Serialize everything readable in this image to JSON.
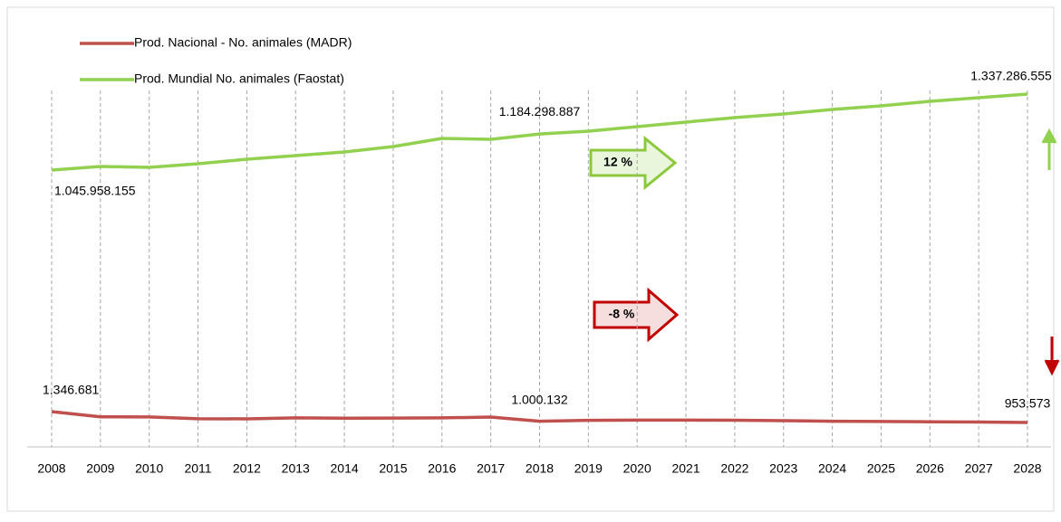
{
  "chart_data": {
    "type": "line",
    "categories": [
      "2008",
      "2009",
      "2010",
      "2011",
      "2012",
      "2013",
      "2014",
      "2015",
      "2016",
      "2017",
      "2018",
      "2019",
      "2020",
      "2021",
      "2022",
      "2023",
      "2024",
      "2025",
      "2026",
      "2027",
      "2028"
    ],
    "series": [
      {
        "name": "Prod. Nacional - No. animales (MADR)",
        "color": "#c0504d",
        "values": [
          1346681,
          1160000,
          1155000,
          1090000,
          1085000,
          1120000,
          1110000,
          1115000,
          1120000,
          1150000,
          1000132,
          1030000,
          1040000,
          1040000,
          1035000,
          1020000,
          1000000,
          990000,
          980000,
          970000,
          953573
        ],
        "value_labels": [
          "1.346.681",
          null,
          null,
          null,
          null,
          null,
          null,
          null,
          null,
          null,
          "1.000.132",
          null,
          null,
          null,
          null,
          null,
          null,
          null,
          null,
          null,
          "953.573"
        ]
      },
      {
        "name": "Prod. Mundial  No. animales (Faostat)",
        "color": "#92d050",
        "values": [
          1045958155,
          1059830000,
          1056360000,
          1070240000,
          1087580000,
          1101450000,
          1115320000,
          1136130000,
          1167350000,
          1163870000,
          1184298887,
          1195090000,
          1212430000,
          1229770000,
          1247110000,
          1260990000,
          1278330000,
          1292200000,
          1309540000,
          1323410000,
          1337286555
        ],
        "value_labels": [
          "1.045.958.155",
          null,
          null,
          null,
          null,
          null,
          null,
          null,
          null,
          null,
          "1.184.298.887",
          null,
          null,
          null,
          null,
          null,
          null,
          null,
          null,
          null,
          "1.337.286.555"
        ]
      }
    ],
    "annotations": [
      {
        "text": "12 %"
      },
      {
        "text": "-8 %"
      }
    ],
    "grid": true
  }
}
